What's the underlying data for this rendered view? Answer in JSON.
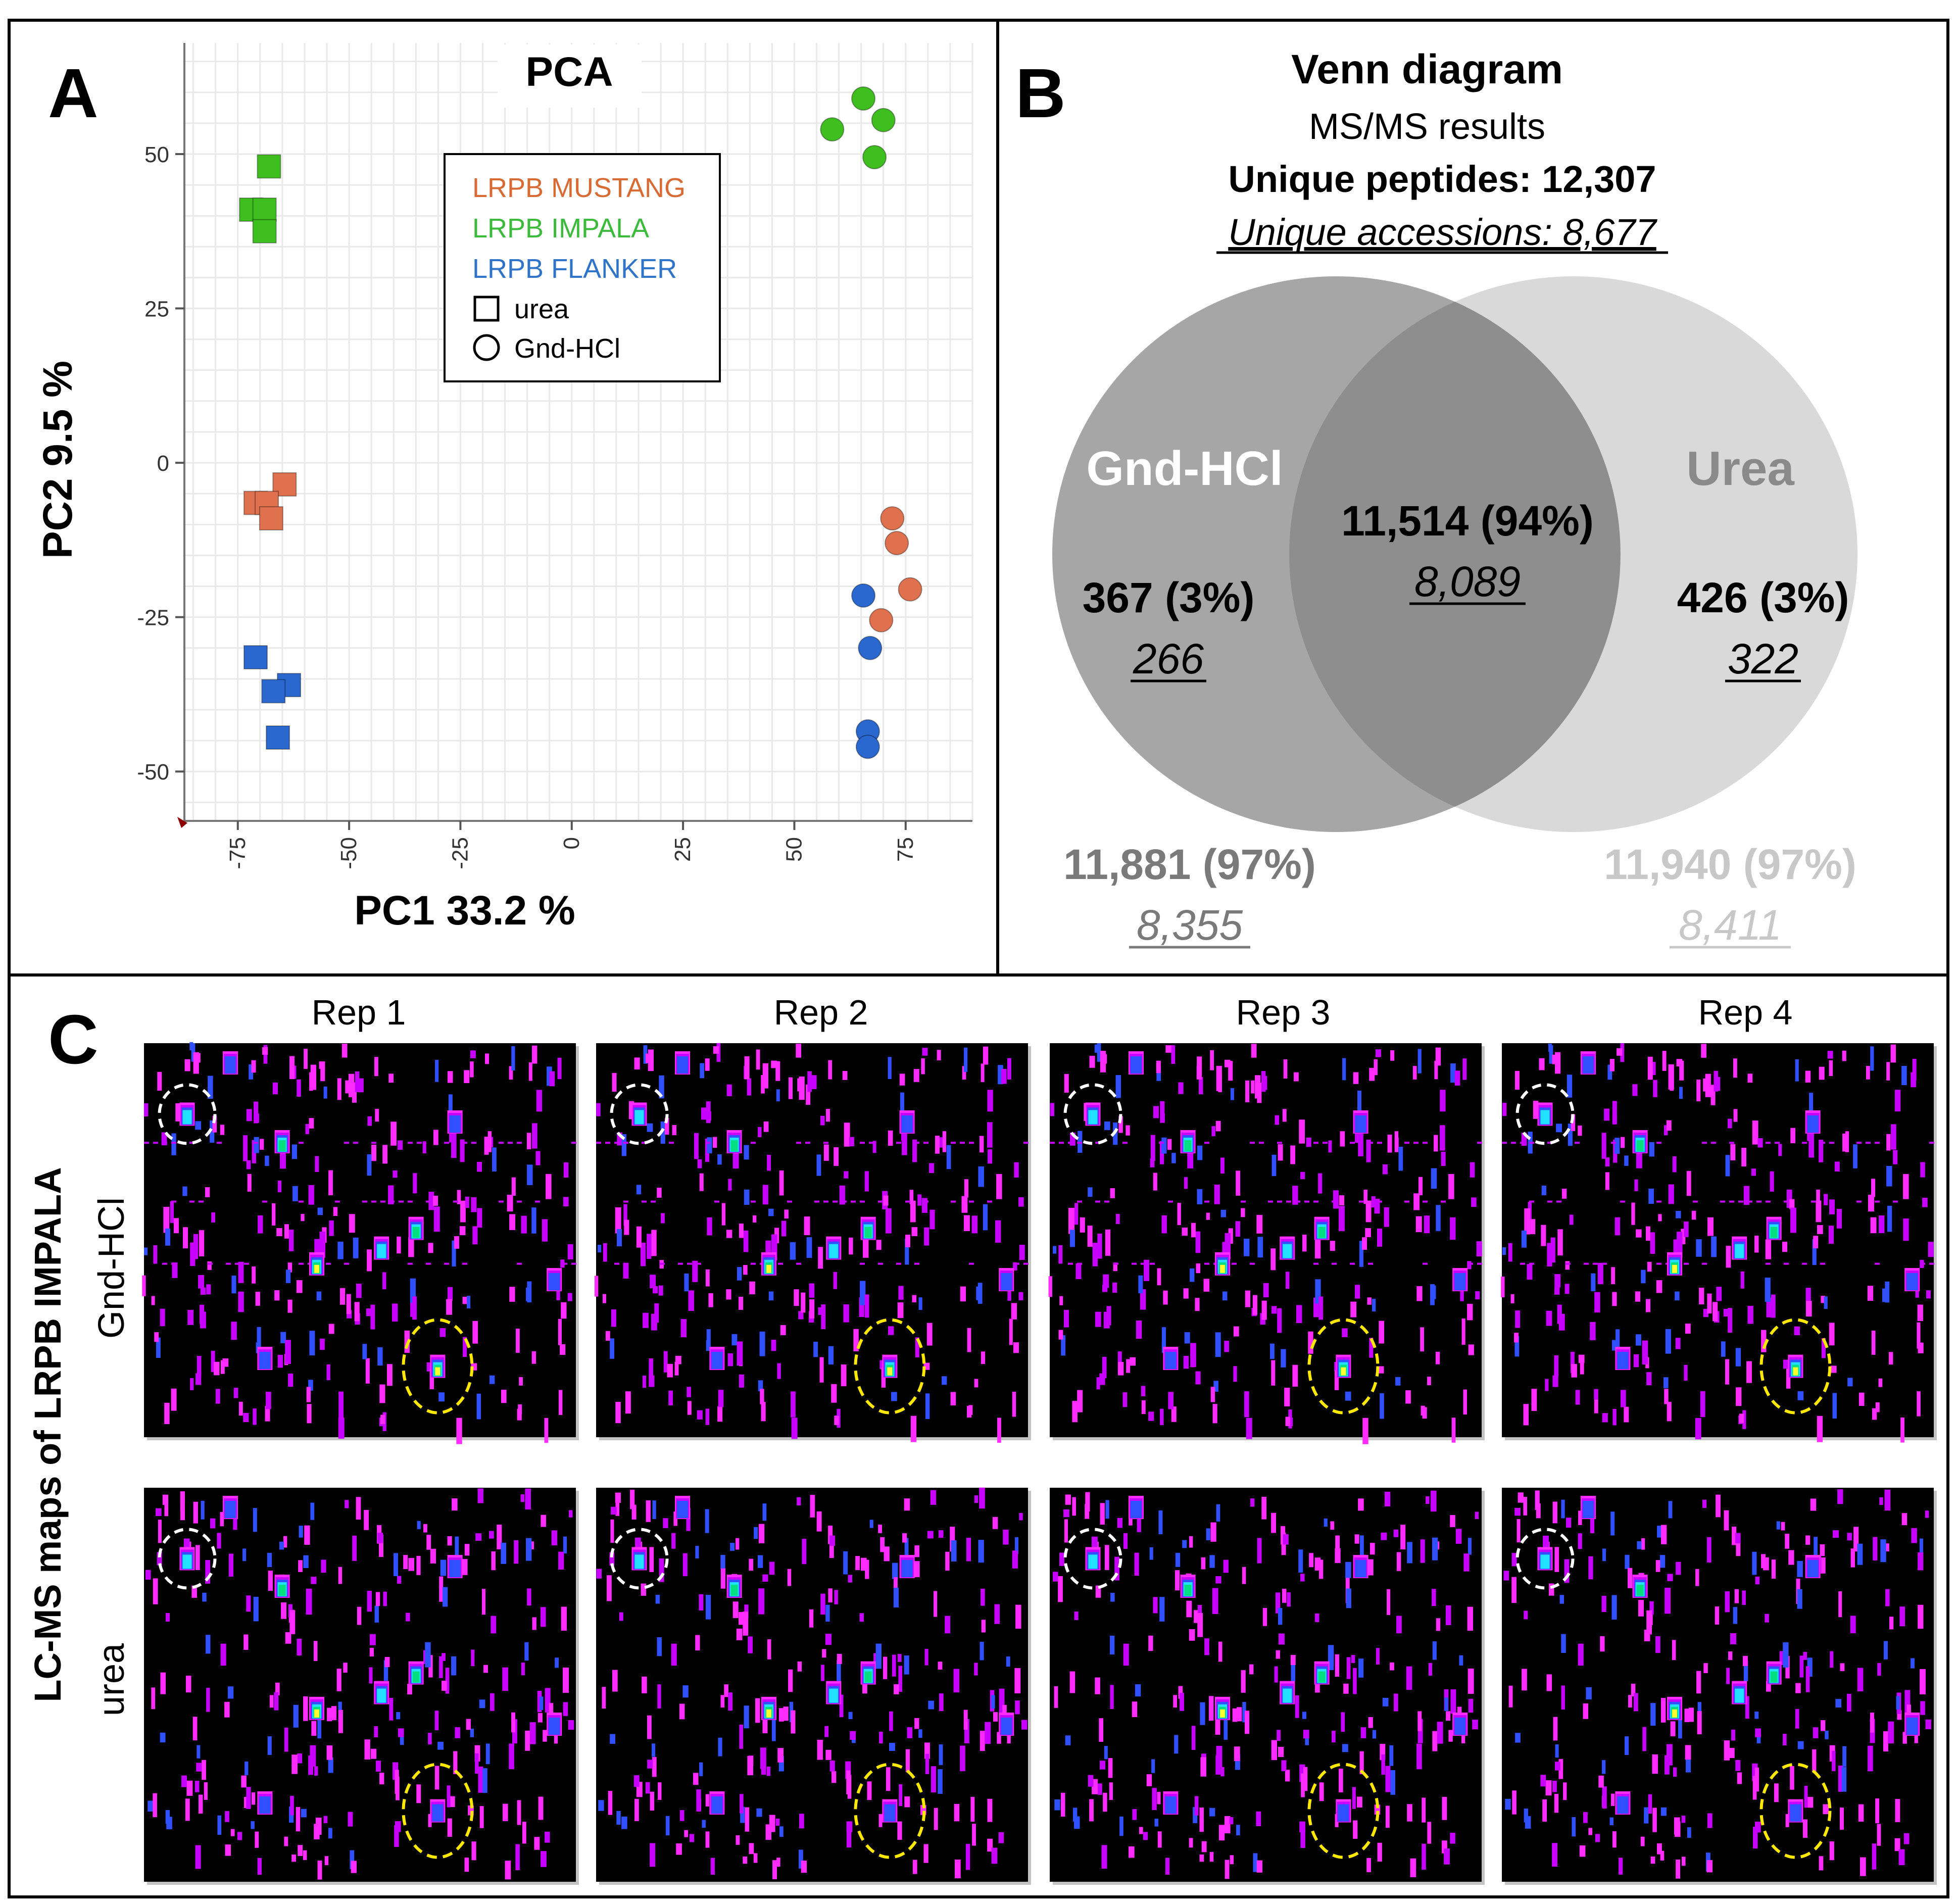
{
  "panels": {
    "a_letter": "A",
    "b_letter": "B",
    "c_letter": "C"
  },
  "pca": {
    "title": "PCA",
    "colors": {
      "mustang": "#e0714f",
      "impala": "#3fbf1f",
      "flanker": "#2a68d0",
      "grid": "#e9e9e9"
    },
    "legend": {
      "entries": [
        {
          "label": "LRPB MUSTANG",
          "color": "#d86a34"
        },
        {
          "label": "LRPB IMPALA",
          "color": "#3cba3c"
        },
        {
          "label": "LRPB FLANKER",
          "color": "#2f74c8"
        }
      ],
      "shape_entries": [
        {
          "label": "urea",
          "shape": "square"
        },
        {
          "label": "Gnd-HCl",
          "shape": "circle"
        }
      ]
    }
  },
  "chart_data": {
    "type": "scatter",
    "title": "PCA",
    "xlabel": "PC1 33.2 %",
    "ylabel": "PC2 9.5 %",
    "xlim": [
      -87,
      90
    ],
    "ylim": [
      -58,
      68
    ],
    "xticks": [
      -75,
      -50,
      -25,
      0,
      25,
      50,
      75
    ],
    "yticks": [
      50,
      25,
      0,
      -25,
      -50
    ],
    "grid": true,
    "series": [
      {
        "name": "LRPB IMPALA",
        "marker": "square",
        "group": "urea",
        "points": [
          [
            -68,
            48
          ],
          [
            -72,
            41
          ],
          [
            -69,
            41
          ],
          [
            -69,
            37.5
          ]
        ]
      },
      {
        "name": "LRPB MUSTANG",
        "marker": "square",
        "group": "urea",
        "points": [
          [
            -64.5,
            -3.5
          ],
          [
            -71,
            -6.5
          ],
          [
            -68.5,
            -6.5
          ],
          [
            -67.5,
            -9
          ]
        ]
      },
      {
        "name": "LRPB FLANKER",
        "marker": "square",
        "group": "urea",
        "points": [
          [
            -71,
            -31.5
          ],
          [
            -63.5,
            -36
          ],
          [
            -67,
            -37
          ],
          [
            -66,
            -44.5
          ]
        ]
      },
      {
        "name": "LRPB IMPALA",
        "marker": "circle",
        "group": "Gnd-HCl",
        "points": [
          [
            65.5,
            59
          ],
          [
            58.5,
            54
          ],
          [
            70,
            55.5
          ],
          [
            68,
            49.5
          ]
        ]
      },
      {
        "name": "LRPB MUSTANG",
        "marker": "circle",
        "group": "Gnd-HCl",
        "points": [
          [
            72,
            -9
          ],
          [
            73,
            -13
          ],
          [
            76,
            -20.5
          ],
          [
            69.5,
            -25.5
          ]
        ]
      },
      {
        "name": "LRPB FLANKER",
        "marker": "circle",
        "group": "Gnd-HCl",
        "points": [
          [
            65.5,
            -21.5
          ],
          [
            67,
            -30
          ],
          [
            66.5,
            -43.5
          ],
          [
            66.5,
            -46
          ]
        ]
      }
    ]
  },
  "venn": {
    "title": "Venn diagram",
    "subtitle": "MS/MS results",
    "unique_peptides": "Unique peptides: 12,307",
    "unique_accessions": "Unique accessions: 8,677",
    "left": {
      "label": "Gnd-HCl",
      "value": "367 (3%)",
      "acc": "266",
      "total": "11,881 (97%)",
      "total_acc": "8,355",
      "label_color": "#ffffff",
      "total_color": "#7a7a7a"
    },
    "center": {
      "value": "11,514 (94%)",
      "acc": "8,089"
    },
    "right": {
      "label": "Urea",
      "value": "426 (3%)",
      "acc": "322",
      "total": "11,940 (97%)",
      "total_acc": "8,411",
      "label_color": "#8a8a8a",
      "total_color": "#c8c8c8"
    }
  },
  "lcms": {
    "side_label": "LC-MS maps of LRPB IMPALA",
    "row_labels": [
      "Gnd-HCl",
      "urea"
    ],
    "columns": [
      "Rep 1",
      "Rep 2",
      "Rep 3",
      "Rep 4"
    ]
  }
}
